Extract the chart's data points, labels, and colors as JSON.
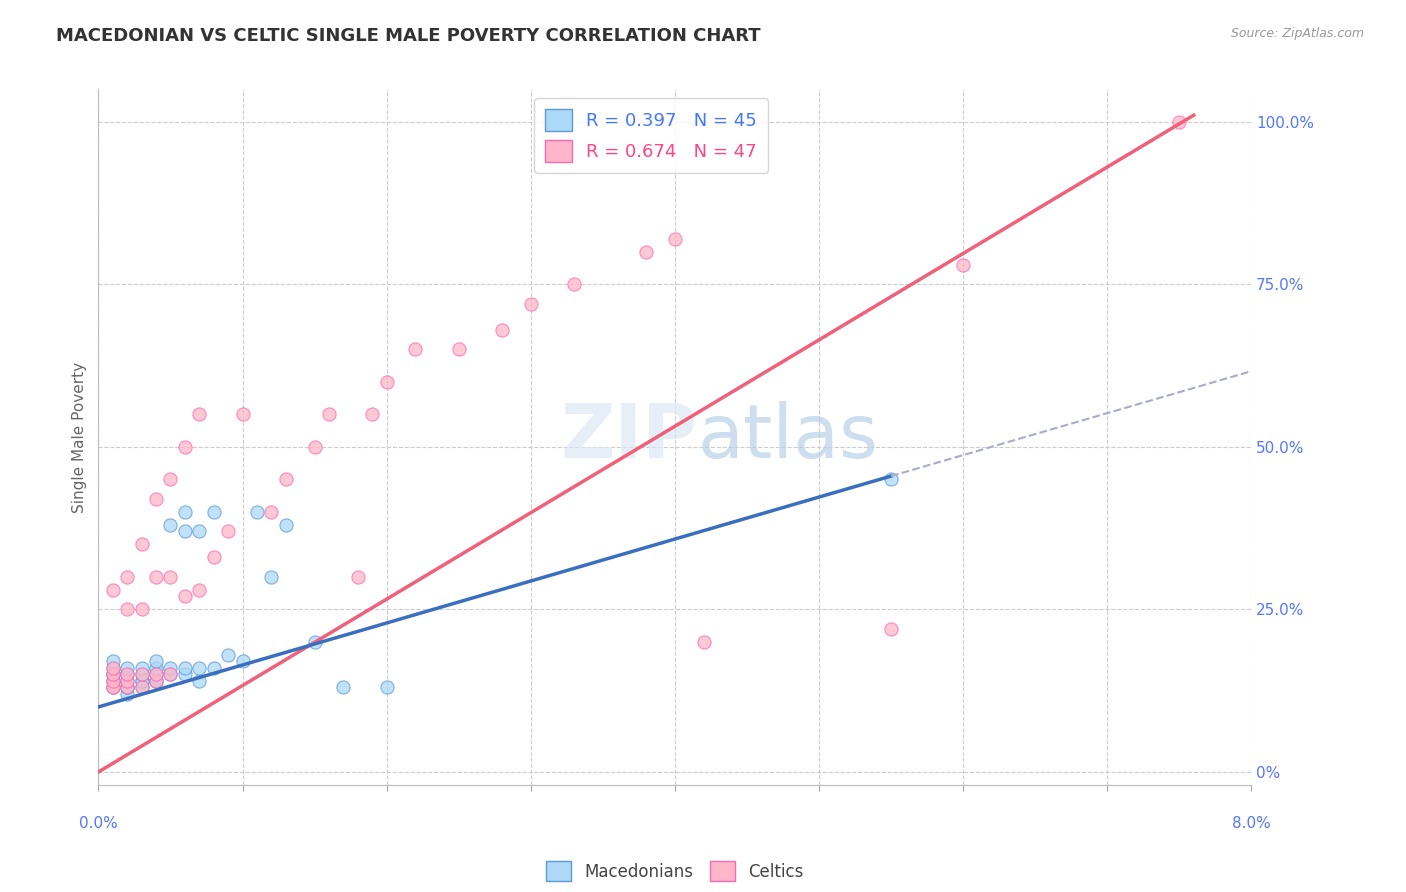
{
  "title": "MACEDONIAN VS CELTIC SINGLE MALE POVERTY CORRELATION CHART",
  "source": "Source: ZipAtlas.com",
  "ylabel": "Single Male Poverty",
  "right_yticks": [
    "0%",
    "25.0%",
    "50.0%",
    "75.0%",
    "100.0%"
  ],
  "right_ytick_vals": [
    0.0,
    0.25,
    0.5,
    0.75,
    1.0
  ],
  "xlim": [
    0.0,
    0.08
  ],
  "ylim": [
    -0.02,
    1.05
  ],
  "legend_r1": "R = 0.397   N = 45",
  "legend_r2": "R = 0.674   N = 47",
  "macedonian_color": "#ADD8F7",
  "macedonian_edge_color": "#5B9BD5",
  "celtic_color": "#FFB6C8",
  "celtic_edge_color": "#FF69B4",
  "macedonian_line_color": "#3A6EBF",
  "celtic_line_color": "#F0607A",
  "macedonian_scatter_x": [
    0.001,
    0.001,
    0.001,
    0.001,
    0.001,
    0.001,
    0.001,
    0.001,
    0.002,
    0.002,
    0.002,
    0.002,
    0.002,
    0.002,
    0.003,
    0.003,
    0.003,
    0.003,
    0.003,
    0.004,
    0.004,
    0.004,
    0.004,
    0.004,
    0.005,
    0.005,
    0.005,
    0.006,
    0.006,
    0.006,
    0.006,
    0.007,
    0.007,
    0.007,
    0.008,
    0.008,
    0.009,
    0.01,
    0.011,
    0.012,
    0.013,
    0.015,
    0.017,
    0.02,
    0.055
  ],
  "macedonian_scatter_y": [
    0.13,
    0.14,
    0.14,
    0.15,
    0.15,
    0.15,
    0.16,
    0.17,
    0.12,
    0.13,
    0.13,
    0.14,
    0.15,
    0.16,
    0.13,
    0.14,
    0.14,
    0.15,
    0.16,
    0.14,
    0.14,
    0.15,
    0.16,
    0.17,
    0.15,
    0.16,
    0.38,
    0.15,
    0.16,
    0.37,
    0.4,
    0.14,
    0.16,
    0.37,
    0.16,
    0.4,
    0.18,
    0.17,
    0.4,
    0.3,
    0.38,
    0.2,
    0.13,
    0.13,
    0.45
  ],
  "celtic_scatter_x": [
    0.001,
    0.001,
    0.001,
    0.001,
    0.001,
    0.001,
    0.002,
    0.002,
    0.002,
    0.002,
    0.002,
    0.003,
    0.003,
    0.003,
    0.003,
    0.004,
    0.004,
    0.004,
    0.004,
    0.005,
    0.005,
    0.005,
    0.006,
    0.006,
    0.007,
    0.007,
    0.008,
    0.009,
    0.01,
    0.012,
    0.013,
    0.015,
    0.016,
    0.018,
    0.019,
    0.02,
    0.022,
    0.025,
    0.028,
    0.03,
    0.033,
    0.038,
    0.04,
    0.042,
    0.055,
    0.06,
    0.075
  ],
  "celtic_scatter_y": [
    0.13,
    0.13,
    0.14,
    0.15,
    0.16,
    0.28,
    0.13,
    0.14,
    0.15,
    0.25,
    0.3,
    0.13,
    0.15,
    0.25,
    0.35,
    0.14,
    0.15,
    0.3,
    0.42,
    0.15,
    0.3,
    0.45,
    0.27,
    0.5,
    0.28,
    0.55,
    0.33,
    0.37,
    0.55,
    0.4,
    0.45,
    0.5,
    0.55,
    0.3,
    0.55,
    0.6,
    0.65,
    0.65,
    0.68,
    0.72,
    0.75,
    0.8,
    0.82,
    0.2,
    0.22,
    0.78,
    1.0
  ],
  "mac_line_x0": 0.0,
  "mac_line_x1": 0.08,
  "mac_line_y0": 0.1,
  "mac_line_y1": 0.455,
  "mac_line_dash_y1": 0.58,
  "cel_line_x0": 0.0,
  "cel_line_x1": 0.076,
  "cel_line_y0": 0.0,
  "cel_line_y1": 1.01
}
